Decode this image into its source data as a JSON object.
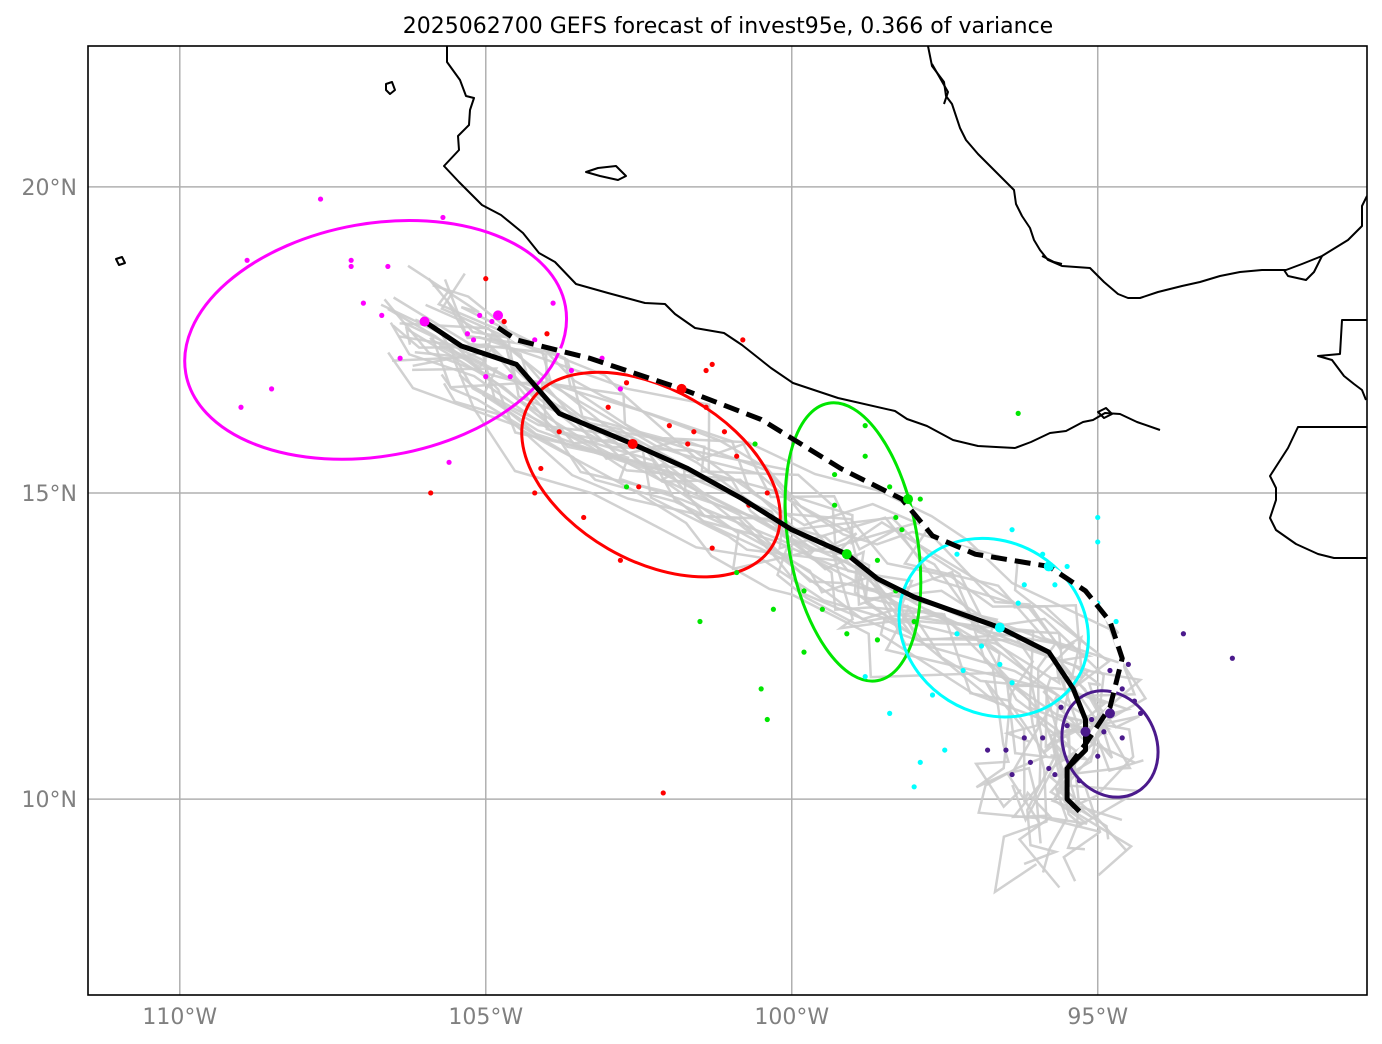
{
  "title": "2025062700 GEFS forecast of invest95e, 0.366 of variance",
  "map_extent": {
    "lon": [
      -111.5,
      -90.6
    ],
    "lat": [
      6.8,
      22.3
    ]
  },
  "x_ticks": [
    {
      "lon": -110,
      "label": "110°W"
    },
    {
      "lon": -105,
      "label": "105°W"
    },
    {
      "lon": -100,
      "label": "100°W"
    },
    {
      "lon": -95,
      "label": "95°W"
    }
  ],
  "y_ticks": [
    {
      "lat": 20,
      "label": "20°N"
    },
    {
      "lat": 15,
      "label": "15°N"
    },
    {
      "lat": 10,
      "label": "10°N"
    }
  ],
  "colors": {
    "member_track": "#cccccc",
    "mean_track": "#000000",
    "coast": "#000000",
    "grid": "#b0b0b0",
    "time_steps": [
      "#ff00ff",
      "#ff0000",
      "#00e600",
      "#00ffff",
      "#4b1a8c"
    ]
  },
  "chart_data": {
    "type": "scatter",
    "solid_track": [
      [
        -106.0,
        17.8
      ],
      [
        -105.4,
        17.4
      ],
      [
        -104.5,
        17.1
      ],
      [
        -103.8,
        16.3
      ],
      [
        -102.6,
        15.8
      ],
      [
        -101.7,
        15.4
      ],
      [
        -100.8,
        14.9
      ],
      [
        -100.0,
        14.4
      ],
      [
        -99.1,
        14.0
      ],
      [
        -98.6,
        13.6
      ],
      [
        -98.0,
        13.3
      ],
      [
        -96.6,
        12.8
      ],
      [
        -95.8,
        12.4
      ],
      [
        -95.4,
        11.8
      ],
      [
        -95.2,
        11.3
      ],
      [
        -95.2,
        10.8
      ],
      [
        -95.5,
        10.5
      ],
      [
        -95.5,
        10.0
      ],
      [
        -95.3,
        9.8
      ]
    ],
    "solid_track_points": [
      [
        -106.0,
        17.8
      ],
      [
        -102.6,
        15.8
      ],
      [
        -99.1,
        14.0
      ],
      [
        -96.6,
        12.8
      ],
      [
        -95.2,
        11.1
      ]
    ],
    "dashed_track": [
      [
        -104.8,
        17.7
      ],
      [
        -104.5,
        17.5
      ],
      [
        -103.3,
        17.2
      ],
      [
        -101.8,
        16.7
      ],
      [
        -100.5,
        16.2
      ],
      [
        -99.2,
        15.4
      ],
      [
        -98.2,
        14.9
      ],
      [
        -97.7,
        14.3
      ],
      [
        -97.0,
        14.0
      ],
      [
        -95.8,
        13.8
      ],
      [
        -95.2,
        13.4
      ],
      [
        -94.8,
        12.9
      ],
      [
        -94.6,
        12.3
      ],
      [
        -94.8,
        11.5
      ],
      [
        -95.2,
        10.9
      ],
      [
        -95.5,
        10.5
      ]
    ],
    "dashed_track_points": [
      [
        -104.8,
        17.9
      ],
      [
        -101.8,
        16.7
      ],
      [
        -98.1,
        14.9
      ],
      [
        -95.8,
        13.8
      ],
      [
        -94.8,
        11.4
      ]
    ],
    "ellipses": [
      {
        "center": [
          -106.8,
          17.5
        ],
        "rx_deg": 6.3,
        "ry_deg": 1.9,
        "angle_deg": -10
      },
      {
        "center": [
          -102.3,
          15.3
        ],
        "rx_deg": 2.8,
        "ry_deg": 2.3,
        "angle_deg": -60
      },
      {
        "center": [
          -99.0,
          14.2
        ],
        "rx_deg": 2.1,
        "ry_deg": 2.3,
        "angle_deg": -10
      },
      {
        "center": [
          -96.7,
          12.8
        ],
        "rx_deg": 2.8,
        "ry_deg": 1.6,
        "angle_deg": -58
      },
      {
        "center": [
          -94.8,
          10.9
        ],
        "rx_deg": 1.5,
        "ry_deg": 0.9,
        "angle_deg": -28
      }
    ],
    "scatter": [
      [
        [
          -108.9,
          18.8
        ],
        [
          -107.7,
          19.8
        ],
        [
          -107.2,
          18.8
        ],
        [
          -106.6,
          18.7
        ],
        [
          -105.7,
          19.5
        ],
        [
          -105.1,
          17.9
        ],
        [
          -104.9,
          17.8
        ],
        [
          -104.7,
          17.8
        ],
        [
          -103.9,
          18.1
        ],
        [
          -104.2,
          17.5
        ],
        [
          -103.6,
          17.0
        ],
        [
          -102.8,
          16.7
        ],
        [
          -103.1,
          17.2
        ],
        [
          -105.2,
          17.5
        ],
        [
          -105.0,
          16.9
        ],
        [
          -104.6,
          16.9
        ],
        [
          -105.6,
          15.5
        ],
        [
          -106.4,
          17.2
        ],
        [
          -106.7,
          17.9
        ],
        [
          -107.0,
          18.1
        ],
        [
          -108.5,
          16.7
        ],
        [
          -109.0,
          16.4
        ],
        [
          -107.2,
          18.7
        ],
        [
          -105.3,
          17.6
        ]
      ],
      [
        [
          -105.0,
          18.5
        ],
        [
          -104.7,
          17.8
        ],
        [
          -104.0,
          17.6
        ],
        [
          -103.8,
          16.0
        ],
        [
          -104.1,
          15.4
        ],
        [
          -104.2,
          15.0
        ],
        [
          -103.0,
          16.4
        ],
        [
          -102.7,
          16.8
        ],
        [
          -102.0,
          16.1
        ],
        [
          -101.7,
          15.8
        ],
        [
          -101.4,
          17.0
        ],
        [
          -101.3,
          17.1
        ],
        [
          -101.1,
          16.0
        ],
        [
          -100.9,
          15.6
        ],
        [
          -101.4,
          16.4
        ],
        [
          -101.6,
          16.0
        ],
        [
          -102.5,
          15.1
        ],
        [
          -103.4,
          14.6
        ],
        [
          -102.8,
          13.9
        ],
        [
          -101.3,
          14.1
        ],
        [
          -100.7,
          14.8
        ],
        [
          -100.4,
          15.0
        ],
        [
          -102.1,
          10.1
        ],
        [
          -105.9,
          15.0
        ],
        [
          -100.8,
          17.5
        ]
      ],
      [
        [
          -100.6,
          15.8
        ],
        [
          -99.3,
          15.3
        ],
        [
          -98.8,
          15.6
        ],
        [
          -98.4,
          15.1
        ],
        [
          -97.9,
          14.9
        ],
        [
          -98.2,
          14.4
        ],
        [
          -98.6,
          13.9
        ],
        [
          -99.5,
          13.1
        ],
        [
          -99.1,
          12.7
        ],
        [
          -98.6,
          12.6
        ],
        [
          -98.0,
          12.9
        ],
        [
          -98.3,
          13.4
        ],
        [
          -100.3,
          13.1
        ],
        [
          -101.5,
          12.9
        ],
        [
          -100.9,
          13.7
        ],
        [
          -100.4,
          11.3
        ],
        [
          -100.5,
          11.8
        ],
        [
          -98.8,
          16.1
        ],
        [
          -96.3,
          16.3
        ],
        [
          -99.8,
          12.4
        ],
        [
          -98.3,
          14.6
        ],
        [
          -99.3,
          14.8
        ],
        [
          -102.7,
          15.1
        ],
        [
          -99.8,
          13.4
        ]
      ],
      [
        [
          -97.3,
          14.0
        ],
        [
          -96.4,
          14.4
        ],
        [
          -96.2,
          13.5
        ],
        [
          -95.9,
          14.0
        ],
        [
          -95.5,
          13.8
        ],
        [
          -95.0,
          14.2
        ],
        [
          -95.0,
          13.2
        ],
        [
          -94.7,
          12.9
        ],
        [
          -96.4,
          12.7
        ],
        [
          -96.4,
          11.9
        ],
        [
          -96.9,
          12.5
        ],
        [
          -97.3,
          12.7
        ],
        [
          -97.2,
          12.1
        ],
        [
          -97.7,
          11.7
        ],
        [
          -98.4,
          11.4
        ],
        [
          -98.8,
          12.0
        ],
        [
          -97.9,
          10.6
        ],
        [
          -98.0,
          10.2
        ],
        [
          -97.5,
          10.8
        ],
        [
          -95.0,
          14.6
        ],
        [
          -96.3,
          13.2
        ],
        [
          -96.6,
          12.2
        ],
        [
          -95.7,
          13.5
        ]
      ],
      [
        [
          -95.8,
          10.5
        ],
        [
          -95.7,
          10.4
        ],
        [
          -95.4,
          10.6
        ],
        [
          -95.3,
          10.3
        ],
        [
          -95.0,
          10.7
        ],
        [
          -94.9,
          11.1
        ],
        [
          -94.6,
          11.0
        ],
        [
          -94.3,
          11.4
        ],
        [
          -94.4,
          11.6
        ],
        [
          -94.6,
          11.8
        ],
        [
          -93.6,
          12.7
        ],
        [
          -92.8,
          12.3
        ],
        [
          -95.5,
          11.2
        ],
        [
          -95.6,
          11.5
        ],
        [
          -96.1,
          10.6
        ],
        [
          -96.4,
          10.4
        ],
        [
          -96.2,
          11.0
        ],
        [
          -96.5,
          10.8
        ],
        [
          -96.8,
          10.8
        ],
        [
          -95.1,
          11.3
        ],
        [
          -94.8,
          12.1
        ],
        [
          -94.5,
          12.2
        ],
        [
          -95.9,
          11.0
        ]
      ]
    ]
  }
}
